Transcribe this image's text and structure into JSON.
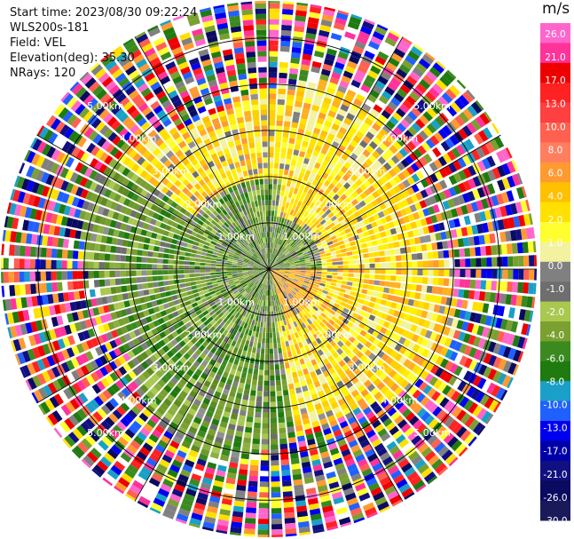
{
  "header": {
    "start_time": "Start time: 2023/08/30 09:22:24",
    "instrument": "WLS200s-181",
    "field": "Field: VEL",
    "elevation": "Elevation(deg): 35.30",
    "nrays": "NRays: 120"
  },
  "chart_data": {
    "type": "heatmap",
    "projection": "polar PPI",
    "field": "VEL",
    "rays": 120,
    "range_rings_km": [
      1.0,
      2.0,
      3.0,
      4.0,
      5.0
    ],
    "ring_labels": [
      "1.00km",
      "2.00km",
      "3.00km",
      "4.00km",
      "5.00km"
    ],
    "max_range_km": 5.8,
    "radial_lines_deg": [
      0,
      30,
      60,
      90,
      120,
      150,
      180,
      210,
      240,
      270,
      300,
      330
    ],
    "colorbar": {
      "title": "m/s",
      "tick_labels": [
        "26.0",
        "21.0",
        "17.0",
        "13.0",
        "10.0",
        "8.0",
        "6.0",
        "4.0",
        "2.0",
        "1.0",
        "0.0",
        "-1.0",
        "-2.0",
        "-4.0",
        "-6.0",
        "-8.0",
        "-10.0",
        "-13.0",
        "-17.0",
        "-21.0",
        "-26.0",
        "-30.0"
      ],
      "colors": [
        "#ff66cc",
        "#ff3399",
        "#ee0000",
        "#ff2222",
        "#ff4040",
        "#ff6050",
        "#ff7e60",
        "#ff9a30",
        "#ffc000",
        "#ffe000",
        "#ffff30",
        "#f2f2a0",
        "#808080",
        "#6e6e6e",
        "#a8c850",
        "#7aa030",
        "#3a8a20",
        "#1f7a10",
        "#1aa0c8",
        "#2060ff",
        "#0000ee",
        "#0000aa",
        "#101080",
        "#0a0a60",
        "#1a1a5a"
      ]
    }
  }
}
